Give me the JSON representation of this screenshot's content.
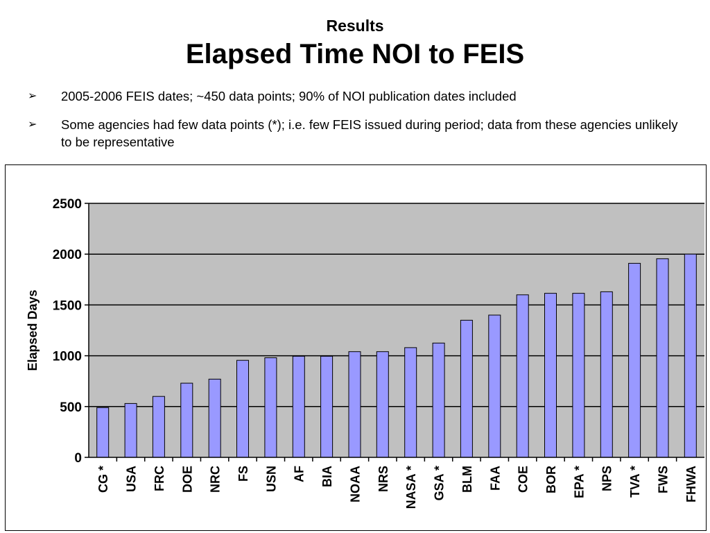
{
  "slide": {
    "subtitle": "Results",
    "title": "Elapsed Time NOI to FEIS",
    "bullet_glyph": "➢",
    "bullets": [
      "2005-2006 FEIS dates; ~450 data points; 90% of NOI publication dates included",
      "Some agencies had few data points (*); i.e. few FEIS issued during period; data from these agencies unlikely to be representative"
    ]
  },
  "colors": {
    "bar_fill": "#9999ff",
    "bar_stroke": "#000000",
    "plot_background": "#c0c0c0",
    "gridline": "#000000"
  },
  "chart_data": {
    "type": "bar",
    "categories": [
      "CG *",
      "USA",
      "FRC",
      "DOE",
      "NRC",
      "FS",
      "USN",
      "AF",
      "BIA",
      "NOAA",
      "NRS",
      "NASA *",
      "GSA *",
      "BLM",
      "FAA",
      "COE",
      "BOR",
      "EPA *",
      "NPS",
      "TVA *",
      "FWS",
      "FHWA"
    ],
    "values": [
      490,
      530,
      600,
      730,
      770,
      955,
      980,
      995,
      995,
      1040,
      1040,
      1080,
      1125,
      1350,
      1400,
      1600,
      1615,
      1615,
      1630,
      1910,
      1955,
      2000
    ],
    "title": "",
    "xlabel": "",
    "ylabel": "Elapsed Days",
    "ylim": [
      0,
      2500
    ],
    "yticks": [
      0,
      500,
      1000,
      1500,
      2000,
      2500
    ],
    "grid": true,
    "legend": false
  }
}
